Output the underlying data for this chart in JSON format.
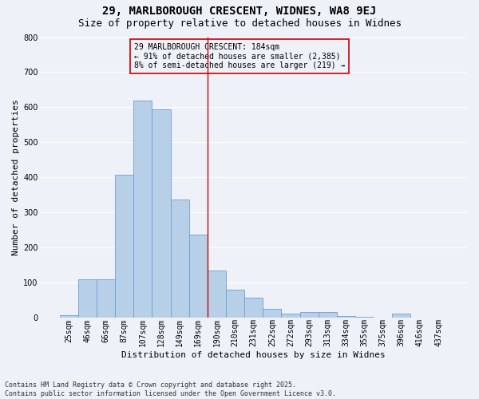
{
  "title1": "29, MARLBOROUGH CRESCENT, WIDNES, WA8 9EJ",
  "title2": "Size of property relative to detached houses in Widnes",
  "xlabel": "Distribution of detached houses by size in Widnes",
  "ylabel": "Number of detached properties",
  "bar_color": "#b8cfe8",
  "bar_edge_color": "#6a9fd8",
  "bg_color": "#eef2f8",
  "grid_color": "#ffffff",
  "categories": [
    "25sqm",
    "46sqm",
    "66sqm",
    "87sqm",
    "107sqm",
    "128sqm",
    "149sqm",
    "169sqm",
    "190sqm",
    "210sqm",
    "231sqm",
    "252sqm",
    "272sqm",
    "293sqm",
    "313sqm",
    "334sqm",
    "355sqm",
    "375sqm",
    "396sqm",
    "416sqm",
    "437sqm"
  ],
  "values": [
    7,
    110,
    110,
    407,
    618,
    595,
    336,
    237,
    135,
    80,
    56,
    25,
    12,
    16,
    16,
    3,
    1,
    0,
    10,
    0,
    0
  ],
  "vline_x": 7.5,
  "vline_color": "#cc0000",
  "annotation_text": "29 MARLBOROUGH CRESCENT: 184sqm\n← 91% of detached houses are smaller (2,385)\n8% of semi-detached houses are larger (219) →",
  "ylim": [
    0,
    800
  ],
  "yticks": [
    0,
    100,
    200,
    300,
    400,
    500,
    600,
    700,
    800
  ],
  "footer": "Contains HM Land Registry data © Crown copyright and database right 2025.\nContains public sector information licensed under the Open Government Licence v3.0.",
  "title_fontsize": 10,
  "subtitle_fontsize": 9,
  "axis_fontsize": 8,
  "tick_fontsize": 7,
  "annot_fontsize": 7,
  "footer_fontsize": 6
}
